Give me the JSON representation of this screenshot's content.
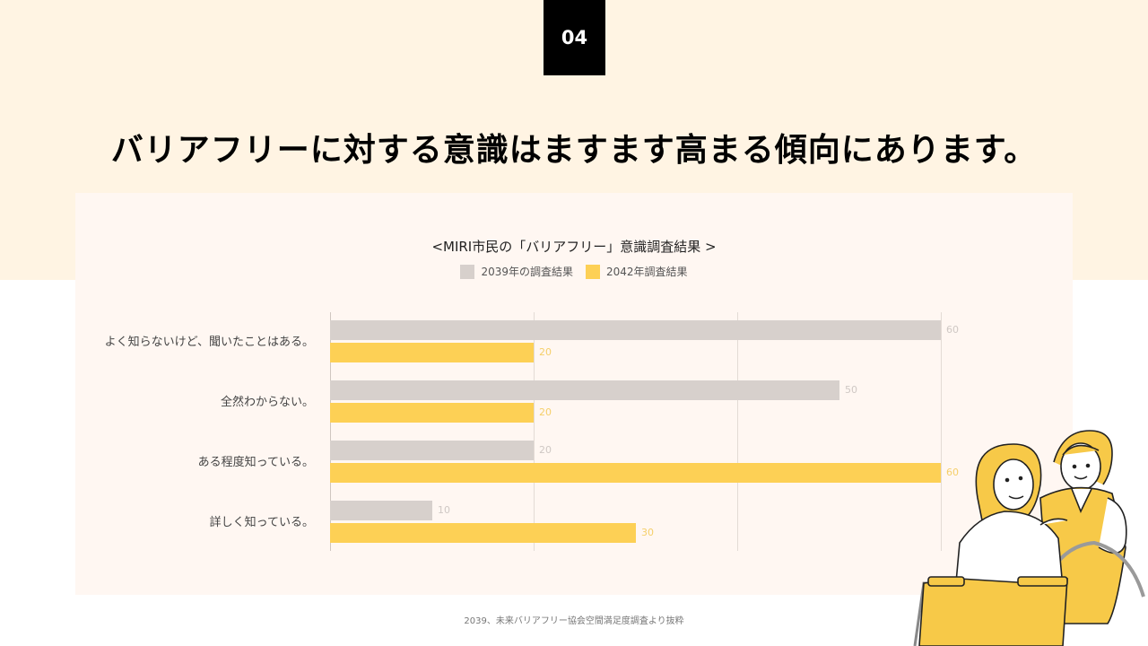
{
  "slide": {
    "page_number": "04",
    "headline": "バリアフリーに対する意識はますます高まる傾向にあります。",
    "source_note": "2039、未来バリアフリー協会空間満足度調査より抜粋"
  },
  "colors": {
    "series_2039": "#d7d0cc",
    "series_2042": "#fdd055",
    "label_2039": "#cfc8c4",
    "label_2042": "#f5cf6a",
    "top_band": "#fff4e3",
    "panel": "#fff7f2"
  },
  "legend": {
    "items": [
      {
        "label": "2039年の調査結果"
      },
      {
        "label": "2042年調査結果"
      }
    ]
  },
  "chart_data": {
    "type": "bar",
    "orientation": "horizontal",
    "title": "<MIRI市民の「バリアフリー」意識調査結果 >",
    "categories": [
      "よく知らないけど、聞いたことはある。",
      "全然わからない。",
      "ある程度知っている。",
      "詳しく知っている。"
    ],
    "series": [
      {
        "name": "2039年の調査結果",
        "values": [
          60,
          50,
          20,
          10
        ]
      },
      {
        "name": "2042年調査結果",
        "values": [
          20,
          20,
          60,
          30
        ]
      }
    ],
    "xlim": [
      0,
      60
    ],
    "grid": true,
    "gridlines_at": [
      0,
      20,
      40,
      60
    ],
    "legend_position": "top",
    "xlabel": "",
    "ylabel": ""
  }
}
